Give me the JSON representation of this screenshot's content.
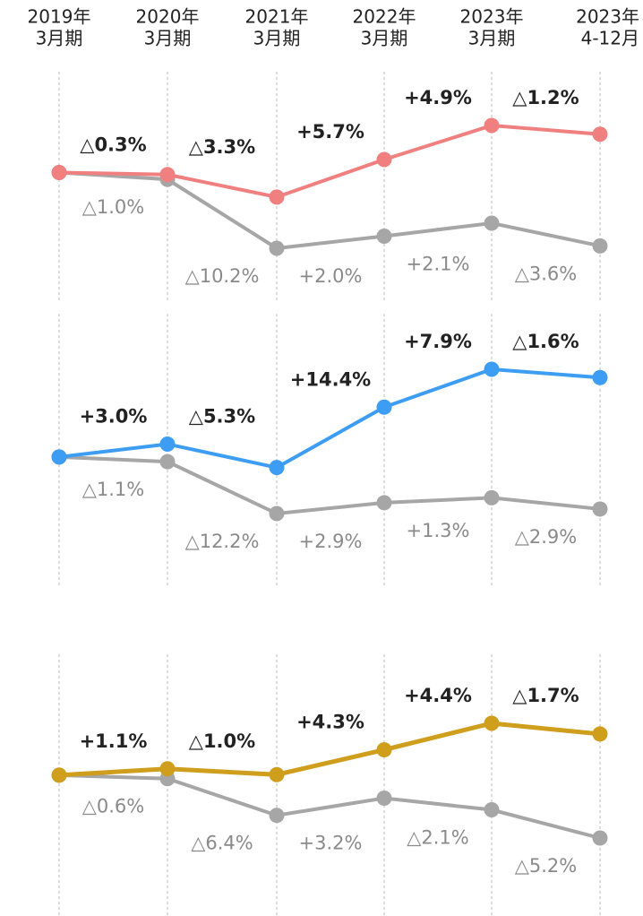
{
  "chart_data": [
    {
      "type": "line",
      "categories": [
        [
          "2019年",
          "3月期"
        ],
        [
          "2020年",
          "3月期"
        ],
        [
          "2021年",
          "3月期"
        ],
        [
          "2022年",
          "3月期"
        ],
        [
          "2023年",
          "3月期"
        ],
        [
          "2023年",
          "4-12月"
        ]
      ],
      "series": [
        {
          "color": "#f07f7f",
          "values": [
            null,
            -0.3,
            -3.3,
            5.7,
            4.9,
            -1.2
          ],
          "value_labels": [
            null,
            "△0.3%",
            "△3.3%",
            "+5.7%",
            "+4.9%",
            "△1.2%"
          ]
        },
        {
          "color": "#a6a6a6",
          "values": [
            null,
            -1.0,
            -10.2,
            2.0,
            2.1,
            -3.6
          ],
          "value_labels": [
            null,
            "△1.0%",
            "△10.2%",
            "+2.0%",
            "+2.1%",
            "△3.6%"
          ]
        }
      ]
    },
    {
      "type": "line",
      "series": [
        {
          "color": "#3d9df3",
          "values": [
            null,
            3.0,
            -5.3,
            14.4,
            7.9,
            -1.6
          ],
          "value_labels": [
            null,
            "+3.0%",
            "△5.3%",
            "+14.4%",
            "+7.9%",
            "△1.6%"
          ]
        },
        {
          "color": "#a6a6a6",
          "values": [
            null,
            -1.1,
            -12.2,
            2.9,
            1.3,
            -2.9
          ],
          "value_labels": [
            null,
            "△1.1%",
            "△12.2%",
            "+2.9%",
            "+1.3%",
            "△2.9%"
          ]
        }
      ]
    },
    {
      "type": "line",
      "series": [
        {
          "color": "#cf9e1d",
          "values": [
            null,
            1.1,
            -1.0,
            4.3,
            4.4,
            -1.7
          ],
          "value_labels": [
            null,
            "+1.1%",
            "△1.0%",
            "+4.3%",
            "+4.4%",
            "△1.7%"
          ]
        },
        {
          "color": "#a6a6a6",
          "values": [
            null,
            -0.6,
            -6.4,
            3.2,
            -2.1,
            -5.2
          ],
          "value_labels": [
            null,
            "△0.6%",
            "△6.4%",
            "+3.2%",
            "△2.1%",
            "△5.2%"
          ]
        }
      ]
    }
  ]
}
